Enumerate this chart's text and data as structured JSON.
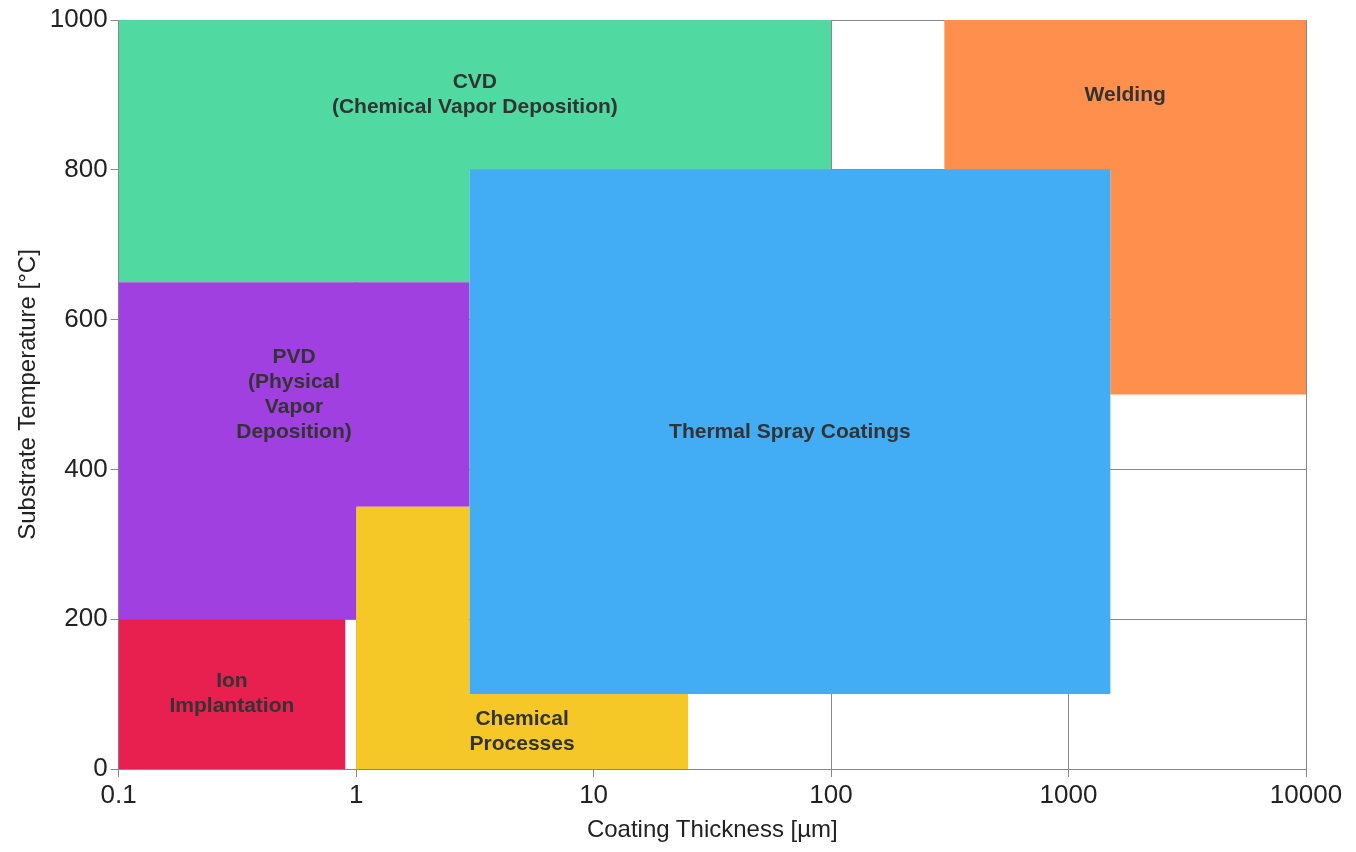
{
  "chart_data": {
    "type": "area",
    "xlabel": "Coating Thickness [µm]",
    "ylabel": "Substrate Temperature [°C]",
    "log": "x",
    "xlim": [
      0.1,
      10000
    ],
    "xticks": [
      0.1,
      1,
      10,
      100,
      1000,
      10000
    ],
    "ylim": [
      0,
      1000
    ],
    "yticks": [
      0,
      200,
      400,
      600,
      800,
      1000
    ],
    "grid": true,
    "legend": false,
    "series": [
      {
        "name": "CVD\n(Chemical Vapor Deposition)",
        "color": "#50d9a0",
        "x": [
          0.1,
          0.1,
          100,
          100,
          3,
          3
        ],
        "values": [
          650,
          1000,
          1000,
          800,
          800,
          650
        ]
      },
      {
        "name": "Welding",
        "color": "#ff8f4c",
        "x": [
          300,
          300,
          10000,
          10000,
          1500,
          1500
        ],
        "values": [
          800,
          1000,
          1000,
          500,
          500,
          800
        ]
      },
      {
        "name": "PVD\n(Physical\nVapor\nDeposition)",
        "color": "#a040e0",
        "x": [
          0.1,
          0.1,
          3,
          3,
          1,
          1
        ],
        "values": [
          200,
          650,
          650,
          350,
          350,
          200
        ]
      },
      {
        "name": "Thermal Spray Coatings",
        "color": "#42acf5",
        "x": [
          3,
          3,
          1500,
          1500
        ],
        "values": [
          100,
          800,
          800,
          100
        ]
      },
      {
        "name": "Ion\nImplantation",
        "color": "#e8204f",
        "x": [
          0.1,
          0.1,
          0.9,
          0.9
        ],
        "values": [
          0,
          200,
          200,
          0
        ]
      },
      {
        "name": "Chemical\nProcesses",
        "color": "#f5c828",
        "x": [
          1,
          1,
          3,
          3,
          25,
          25
        ],
        "values": [
          0,
          350,
          350,
          100,
          100,
          0
        ]
      }
    ]
  }
}
